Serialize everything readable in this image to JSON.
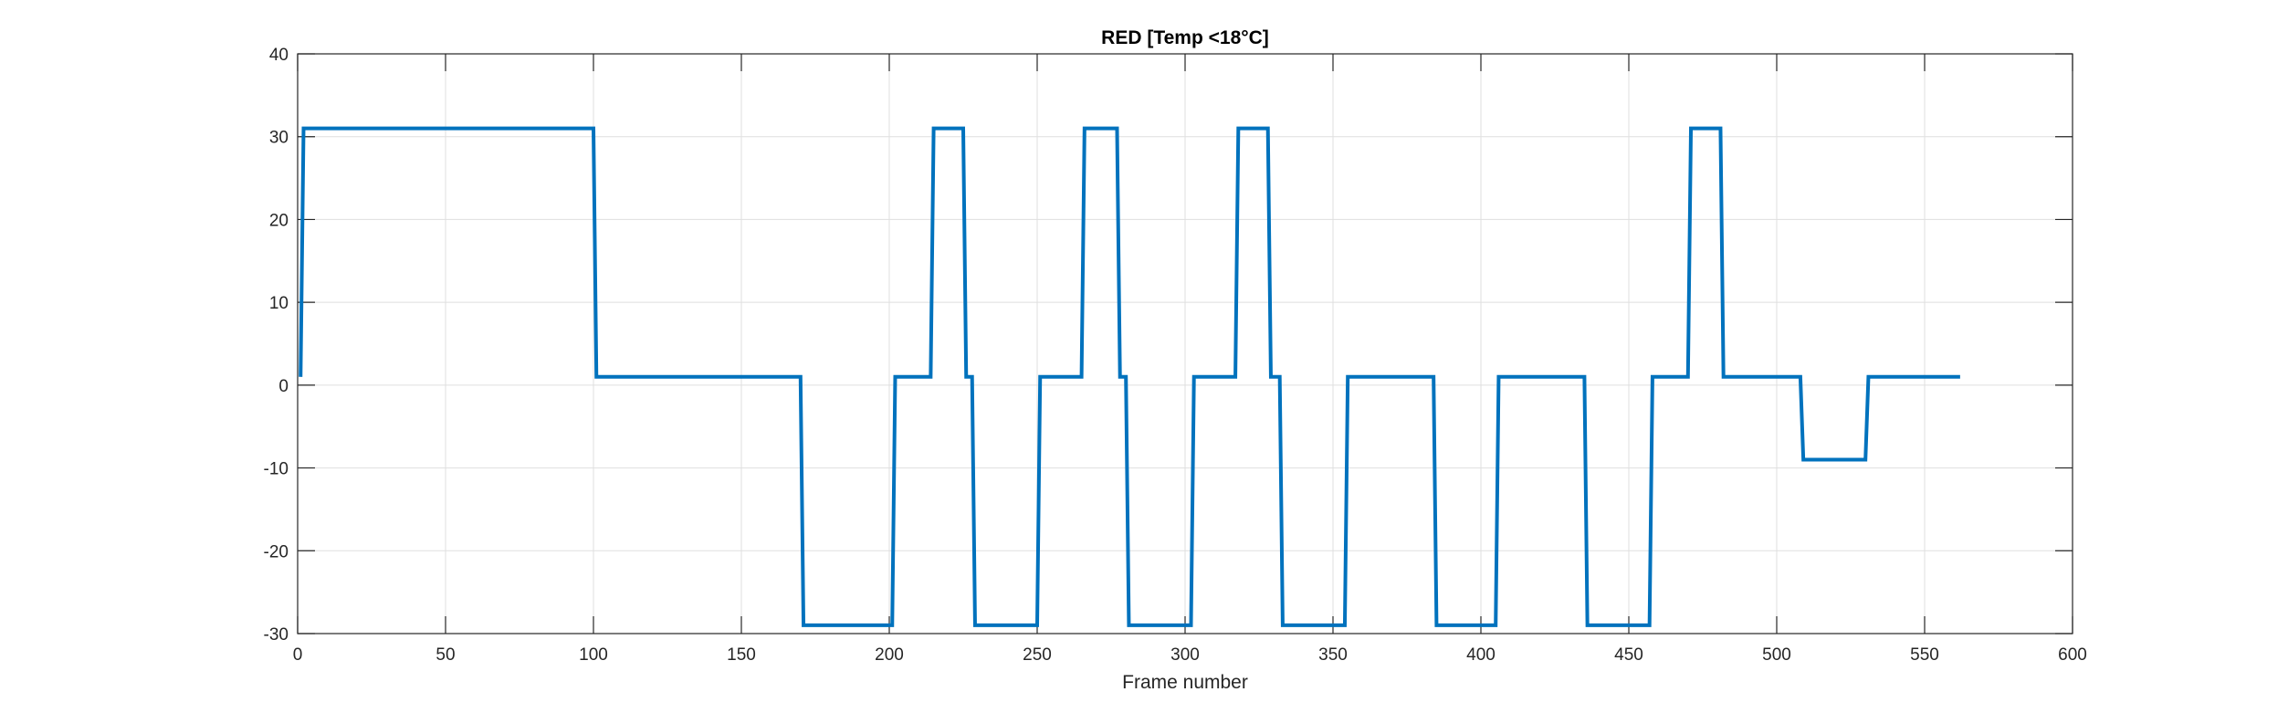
{
  "chart_data": {
    "type": "line",
    "title": "RED [Temp <18°C]",
    "xlabel": "Frame number",
    "ylabel": "",
    "xlim": [
      0,
      600
    ],
    "ylim": [
      -30,
      40
    ],
    "xticks": [
      0,
      50,
      100,
      150,
      200,
      250,
      300,
      350,
      400,
      450,
      500,
      550,
      600
    ],
    "yticks": [
      -30,
      -20,
      -10,
      0,
      10,
      20,
      30,
      40
    ],
    "grid": true,
    "line_color": "#0072BD",
    "series": [
      {
        "x": [
          1,
          2,
          100,
          101,
          170,
          171,
          201,
          202,
          214,
          215,
          225,
          226,
          228,
          229,
          250,
          251,
          265,
          266,
          277,
          278,
          280,
          281,
          302,
          303,
          317,
          318,
          328,
          329,
          332,
          333,
          354,
          355,
          384,
          385,
          405,
          406,
          435,
          436,
          457,
          458,
          470,
          471,
          481,
          482,
          508,
          509,
          530,
          531,
          562
        ],
        "y": [
          1,
          31,
          31,
          1,
          1,
          -29,
          -29,
          1,
          1,
          31,
          31,
          1,
          1,
          -29,
          -29,
          1,
          1,
          31,
          31,
          1,
          1,
          -29,
          -29,
          1,
          1,
          31,
          31,
          1,
          1,
          -29,
          -29,
          1,
          1,
          -29,
          -29,
          1,
          1,
          -29,
          -29,
          1,
          1,
          31,
          31,
          1,
          1,
          -9,
          -9,
          1,
          1
        ]
      }
    ]
  }
}
